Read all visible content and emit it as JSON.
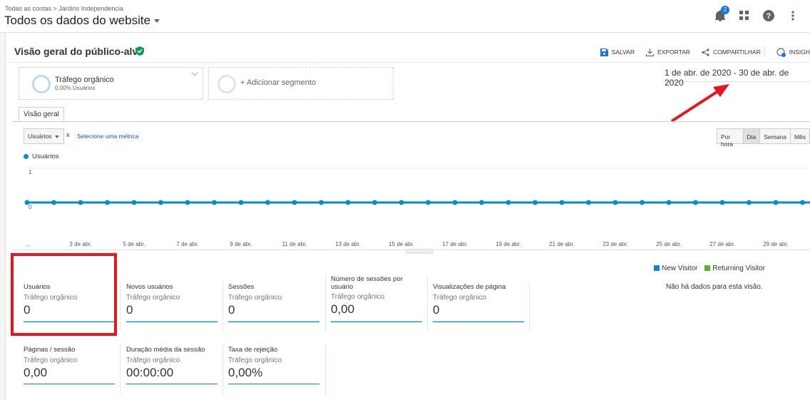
{
  "header": {
    "breadcrumb": "Todas as contas > Jardins Independencia",
    "title": "Todos os dados do website",
    "notification_count": "2"
  },
  "report": {
    "title": "Visão geral do público-alvo",
    "actions": {
      "save": "SALVAR",
      "export": "EXPORTAR",
      "share": "COMPARTILHAR",
      "insights": "INSIGH"
    }
  },
  "segments": {
    "active": {
      "name": "Tráfego orgânico",
      "sub": "0,00% Usuários"
    },
    "add_label": "+ Adicionar segmento"
  },
  "date_range": "1 de abr. de 2020 - 30 de abr. de 2020",
  "tabs": {
    "overview": "Visão geral"
  },
  "metric_picker": {
    "selected": "Usuários",
    "remove": "x",
    "select_other": "Selecione uma métrica"
  },
  "granularity": [
    "Por hora",
    "Dia",
    "Semana",
    "Mês"
  ],
  "granularity_active": "Dia",
  "chart_data": {
    "type": "line",
    "series": [
      {
        "name": "Usuários",
        "values": [
          0,
          0,
          0,
          0,
          0,
          0,
          0,
          0,
          0,
          0,
          0,
          0,
          0,
          0,
          0,
          0,
          0,
          0,
          0,
          0,
          0,
          0,
          0,
          0,
          0,
          0,
          0,
          0,
          0,
          0
        ]
      }
    ],
    "ylim": [
      0,
      1
    ],
    "yticks": [
      "1",
      "0"
    ],
    "xtick_labels": [
      "...",
      "3 de abr.",
      "5 de abr.",
      "7 de abr.",
      "9 de abr.",
      "11 de abr.",
      "13 de abr.",
      "15 de abr.",
      "17 de abr.",
      "19 de abr.",
      "21 de abr.",
      "23 de abr.",
      "25 de abr.",
      "27 de abr.",
      "29 de abr."
    ],
    "color": "#058dc7"
  },
  "scorecards": [
    {
      "label": "Usuários",
      "segment": "Tráfego orgânico",
      "value": "0"
    },
    {
      "label": "Novos usuários",
      "segment": "Tráfego orgânico",
      "value": "0"
    },
    {
      "label": "Sessões",
      "segment": "Tráfego orgânico",
      "value": "0"
    },
    {
      "label": "Número de sessões por usuário",
      "segment": "Tráfego orgânico",
      "value": "0,00"
    },
    {
      "label": "Visualizações de página",
      "segment": "Tráfego orgânico",
      "value": "0"
    },
    {
      "label": "Páginas / sessão",
      "segment": "Tráfego orgânico",
      "value": "0,00"
    },
    {
      "label": "Duração média da sessão",
      "segment": "Tráfego orgânico",
      "value": "00:00:00"
    },
    {
      "label": "Taxa de rejeição",
      "segment": "Tráfego orgânico",
      "value": "0,00%"
    }
  ],
  "pie": {
    "legend": [
      {
        "label": "New Visitor",
        "color": "#058dc7"
      },
      {
        "label": "Returning Visitor",
        "color": "#50b432"
      }
    ],
    "no_data": "Não há dados para esta visão."
  },
  "colors": {
    "accent": "#058dc7",
    "highlight": "#e8141e",
    "verified": "#0f9d58"
  }
}
